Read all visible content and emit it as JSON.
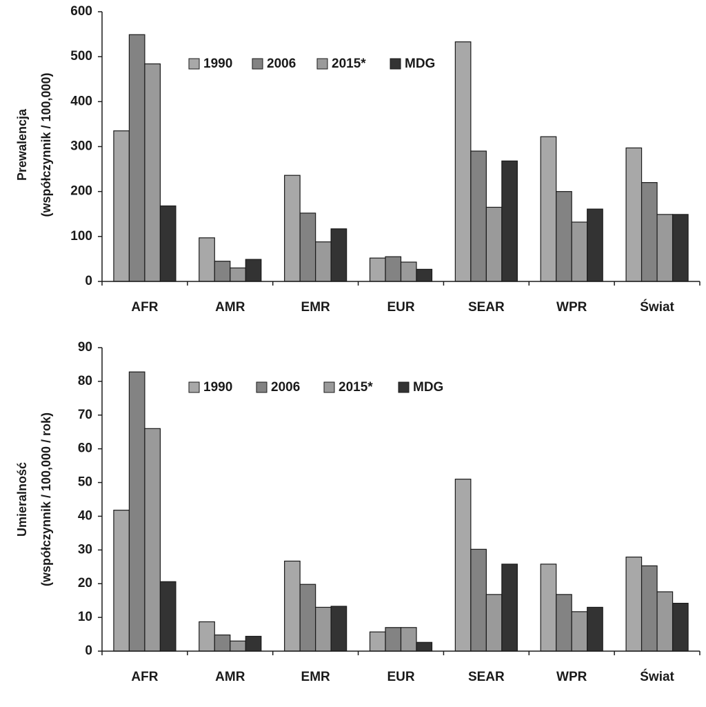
{
  "chart_data": [
    {
      "type": "bar",
      "title": "",
      "ylabel_lines": [
        "Prewalencja",
        "(współczynnik / 100,000)"
      ],
      "xlabel": "",
      "categories": [
        "AFR",
        "AMR",
        "EMR",
        "EUR",
        "SEAR",
        "WPR",
        "Świat"
      ],
      "ylim": [
        0,
        600
      ],
      "yticks": [
        0,
        100,
        200,
        300,
        400,
        500,
        600
      ],
      "legend_position": "top-center",
      "grid": false,
      "series": [
        {
          "name": "1990",
          "color": "#a8a8a8",
          "values": [
            335,
            97,
            236,
            52,
            533,
            322,
            297
          ]
        },
        {
          "name": "2006",
          "color": "#838383",
          "values": [
            549,
            45,
            152,
            55,
            290,
            200,
            220
          ]
        },
        {
          "name": "2015*",
          "color": "#9a9a9a",
          "values": [
            484,
            30,
            88,
            43,
            165,
            132,
            149
          ]
        },
        {
          "name": "MDG",
          "color": "#333333",
          "values": [
            168,
            49,
            117,
            27,
            268,
            161,
            149
          ]
        }
      ]
    },
    {
      "type": "bar",
      "title": "",
      "ylabel_lines": [
        "Umieralność",
        "(współczynnik / 100,000 / rok)"
      ],
      "xlabel": "",
      "categories": [
        "AFR",
        "AMR",
        "EMR",
        "EUR",
        "SEAR",
        "WPR",
        "Świat"
      ],
      "ylim": [
        0,
        90
      ],
      "yticks": [
        0,
        10,
        20,
        30,
        40,
        50,
        60,
        70,
        80,
        90
      ],
      "legend_position": "top-center",
      "grid": false,
      "series": [
        {
          "name": "1990",
          "color": "#a8a8a8",
          "values": [
            41.8,
            8.7,
            26.7,
            5.7,
            51,
            25.8,
            27.9
          ]
        },
        {
          "name": "2006",
          "color": "#838383",
          "values": [
            82.8,
            4.8,
            19.8,
            7.0,
            30.2,
            16.8,
            25.3
          ]
        },
        {
          "name": "2015*",
          "color": "#9a9a9a",
          "values": [
            66,
            3.0,
            13,
            7.0,
            16.8,
            11.7,
            17.6
          ]
        },
        {
          "name": "MDG",
          "color": "#333333",
          "values": [
            20.6,
            4.4,
            13.3,
            2.6,
            25.8,
            13,
            14.2
          ]
        }
      ]
    }
  ]
}
